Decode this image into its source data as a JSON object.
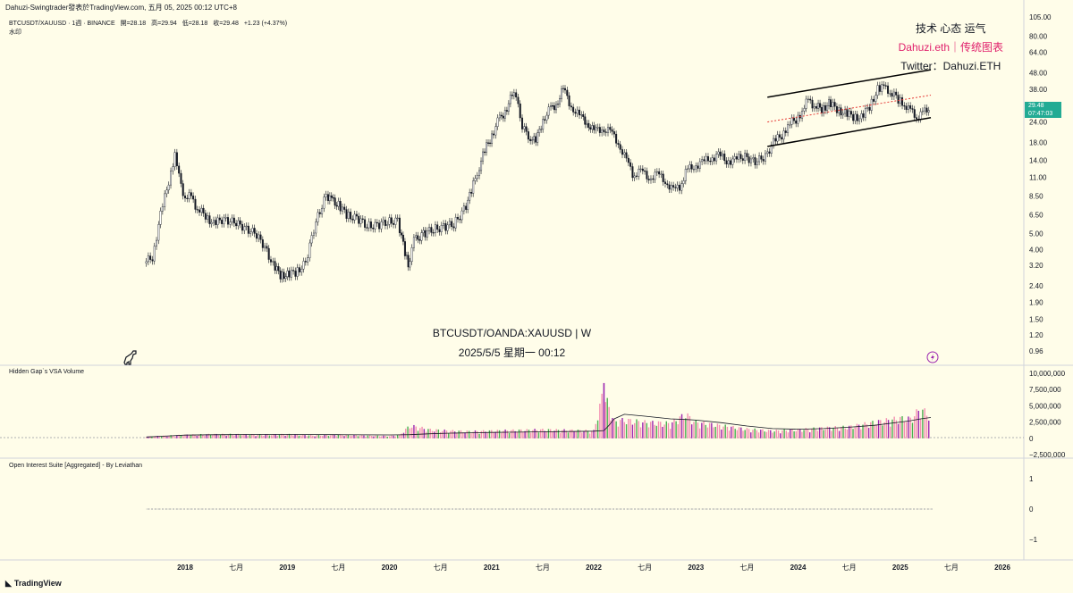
{
  "header": {
    "publisher_line": "Dahuzi-Swingtrader發表於TradingView.com,  五月 05, 2025 00:12 UTC+8",
    "symbol_name": "BTCUSDT/XAUUSD · 1週 · BINANCE",
    "ohlc": {
      "open": "開=28.18",
      "high": "高=29.94",
      "low": "低=28.18",
      "close": "收=29.48",
      "change": "+1.23 (+4.37%)"
    },
    "watermark_label": "水印"
  },
  "branding": {
    "line1": "技术 心态 运气",
    "line2": "Dahuzi.eth｜传统图表",
    "line3": "Twitter：Dahuzi.ETH"
  },
  "center_watermark": {
    "pair": "BTCUSDT/OANDA:XAUUSD | W",
    "datetime": "2025/5/5 星期一 00:12"
  },
  "price_badge": {
    "price": "29.48",
    "countdown": "07:47:03"
  },
  "pane_titles": {
    "volume": "Hidden Gap`s VSA Volume",
    "open_interest": "Open Interest Suite [Aggregated] - By Leviathan"
  },
  "footer": {
    "logo": "TradingView"
  },
  "colors": {
    "background": "#fffde9",
    "up_candle": "#131722",
    "down_candle": "#131722",
    "channel_line": "#000000",
    "mid_line": "#e53935",
    "price_badge": "#22ab94",
    "volume_pink": "#f48fb1",
    "volume_purple": "#9c27b0",
    "volume_green": "#4caf50",
    "brand_pink": "#e0216c"
  },
  "icons": [
    "trex-icon",
    "lightning-icon",
    "tradingview-logo-icon"
  ],
  "chart_data": [
    {
      "type": "candlestick",
      "title": "BTCUSDT/XAUUSD · 1週 · BINANCE",
      "y_scale": "log",
      "y_ticks": [
        "105.00",
        "80.00",
        "64.00",
        "48.00",
        "38.00",
        "29.48",
        "24.00",
        "18.00",
        "14.00",
        "11.00",
        "8.50",
        "6.50",
        "5.00",
        "4.00",
        "3.20",
        "2.40",
        "1.90",
        "1.50",
        "1.20",
        "0.96"
      ],
      "y_tick_values": [
        105,
        80,
        64,
        48,
        38,
        29.48,
        24,
        18,
        14,
        11,
        8.5,
        6.5,
        5,
        4,
        3.2,
        2.4,
        1.9,
        1.5,
        1.2,
        0.96
      ],
      "x_ticks": [
        "2018",
        "七月",
        "2019",
        "七月",
        "2020",
        "七月",
        "2021",
        "七月",
        "2022",
        "七月",
        "2023",
        "七月",
        "2024",
        "七月",
        "2025",
        "七月",
        "2026"
      ],
      "x_tick_values": [
        2018.0,
        2018.5,
        2019.0,
        2019.5,
        2020.0,
        2020.5,
        2021.0,
        2021.5,
        2022.0,
        2022.5,
        2023.0,
        2023.5,
        2024.0,
        2024.5,
        2025.0,
        2025.5,
        2026.0
      ],
      "series": [
        {
          "name": "BTCUSDT/XAUUSD",
          "x": [
            2017.62,
            2017.7,
            2017.78,
            2017.86,
            2017.92,
            2017.96,
            2018.02,
            2018.08,
            2018.14,
            2018.22,
            2018.3,
            2018.4,
            2018.5,
            2018.6,
            2018.7,
            2018.8,
            2018.88,
            2018.95,
            2019.02,
            2019.1,
            2019.2,
            2019.3,
            2019.4,
            2019.45,
            2019.52,
            2019.6,
            2019.7,
            2019.8,
            2019.9,
            2020.0,
            2020.1,
            2020.17,
            2020.2,
            2020.26,
            2020.35,
            2020.45,
            2020.55,
            2020.65,
            2020.75,
            2020.82,
            2020.88,
            2020.95,
            2021.02,
            2021.08,
            2021.15,
            2021.22,
            2021.28,
            2021.32,
            2021.38,
            2021.45,
            2021.52,
            2021.58,
            2021.65,
            2021.72,
            2021.8,
            2021.88,
            2021.95,
            2022.02,
            2022.1,
            2022.18,
            2022.26,
            2022.34,
            2022.4,
            2022.48,
            2022.56,
            2022.64,
            2022.72,
            2022.8,
            2022.86,
            2022.92,
            2023.0,
            2023.08,
            2023.16,
            2023.24,
            2023.32,
            2023.4,
            2023.5,
            2023.6,
            2023.7,
            2023.78,
            2023.86,
            2023.92,
            2024.0,
            2024.06,
            2024.12,
            2024.18,
            2024.25,
            2024.32,
            2024.4,
            2024.48,
            2024.56,
            2024.64,
            2024.72,
            2024.8,
            2024.86,
            2024.92,
            2025.0,
            2025.06,
            2025.12,
            2025.18,
            2025.24,
            2025.3
          ],
          "close": [
            3.3,
            3.6,
            6.5,
            10.5,
            15.5,
            11.0,
            8.2,
            8.5,
            7.0,
            6.5,
            5.7,
            6.2,
            5.8,
            5.5,
            5.0,
            4.2,
            3.2,
            2.8,
            2.8,
            2.9,
            3.3,
            6.0,
            8.5,
            8.0,
            7.5,
            6.5,
            6.2,
            5.6,
            5.6,
            5.9,
            6.0,
            3.8,
            3.2,
            4.5,
            5.0,
            5.3,
            5.5,
            5.7,
            7.0,
            9.0,
            12.0,
            16.0,
            20.0,
            24.0,
            28.0,
            35.0,
            33.0,
            22.0,
            20.0,
            18.0,
            25.0,
            28.0,
            31.0,
            38.0,
            30.0,
            26.0,
            24.0,
            21.0,
            22.0,
            21.0,
            18.0,
            14.0,
            11.5,
            12.0,
            11.0,
            11.5,
            10.5,
            9.2,
            9.5,
            12.0,
            13.0,
            13.5,
            14.5,
            15.0,
            14.0,
            14.0,
            15.0,
            13.5,
            15.0,
            18.0,
            20.0,
            23.0,
            25.0,
            28.0,
            33.0,
            30.0,
            29.0,
            31.0,
            29.0,
            27.0,
            26.0,
            25.5,
            30.0,
            38.0,
            39.0,
            37.0,
            33.0,
            31.0,
            28.0,
            26.0,
            27.0,
            29.48
          ]
        }
      ],
      "annotations": {
        "channel_upper": {
          "x": [
            2023.7,
            2025.3
          ],
          "y": [
            34.0,
            50.0
          ]
        },
        "channel_lower": {
          "x": [
            2023.7,
            2025.3
          ],
          "y": [
            17.0,
            25.5
          ]
        },
        "channel_mid": {
          "x": [
            2023.7,
            2025.3
          ],
          "y": [
            24.0,
            35.0
          ]
        }
      }
    },
    {
      "type": "bar",
      "title": "Hidden Gap`s VSA Volume",
      "y_ticks": [
        "10,000,000",
        "7,500,000",
        "5,000,000",
        "2,500,000",
        "0",
        "−2,500,000"
      ],
      "y_tick_values": [
        10000000,
        7500000,
        5000000,
        2500000,
        0,
        -2500000
      ],
      "x": [
        2017.62,
        2017.75,
        2017.88,
        2018.0,
        2018.25,
        2018.5,
        2018.75,
        2019.0,
        2019.25,
        2019.5,
        2019.75,
        2020.0,
        2020.1,
        2020.2,
        2020.4,
        2020.6,
        2020.8,
        2021.0,
        2021.25,
        2021.5,
        2021.75,
        2022.0,
        2022.1,
        2022.15,
        2022.2,
        2022.3,
        2022.5,
        2022.75,
        2022.9,
        2023.0,
        2023.25,
        2023.5,
        2023.75,
        2024.0,
        2024.25,
        2024.5,
        2024.75,
        2025.0,
        2025.1,
        2025.2,
        2025.3
      ],
      "values": [
        300000,
        400000,
        500000,
        600000,
        700000,
        700000,
        600000,
        700000,
        500000,
        600000,
        500000,
        400000,
        600000,
        2200000,
        1500000,
        1300000,
        1200000,
        1300000,
        1400000,
        1500000,
        1400000,
        1300000,
        8500000,
        5200000,
        3000000,
        3200000,
        2800000,
        2600000,
        4200000,
        2800000,
        2200000,
        1600000,
        1300000,
        1500000,
        1800000,
        2000000,
        2800000,
        3500000,
        3400000,
        5200000,
        3800000
      ],
      "moving_average": [
        200000,
        300000,
        400000,
        500000,
        550000,
        580000,
        600000,
        600000,
        580000,
        560000,
        540000,
        520000,
        530000,
        560000,
        700000,
        800000,
        850000,
        900000,
        950000,
        1000000,
        1050000,
        1100000,
        1200000,
        2000000,
        3000000,
        3700000,
        3400000,
        3000000,
        2900000,
        2800000,
        2400000,
        1900000,
        1500000,
        1400000,
        1500000,
        1700000,
        2000000,
        2500000,
        2700000,
        3000000,
        3200000
      ]
    },
    {
      "type": "line",
      "title": "Open Interest Suite [Aggregated] - By Leviathan",
      "y_ticks": [
        "1",
        "0",
        "−1"
      ],
      "y_tick_values": [
        1,
        0,
        -1
      ],
      "x": [
        2017.62,
        2025.3
      ],
      "y": [
        0,
        0
      ]
    }
  ]
}
